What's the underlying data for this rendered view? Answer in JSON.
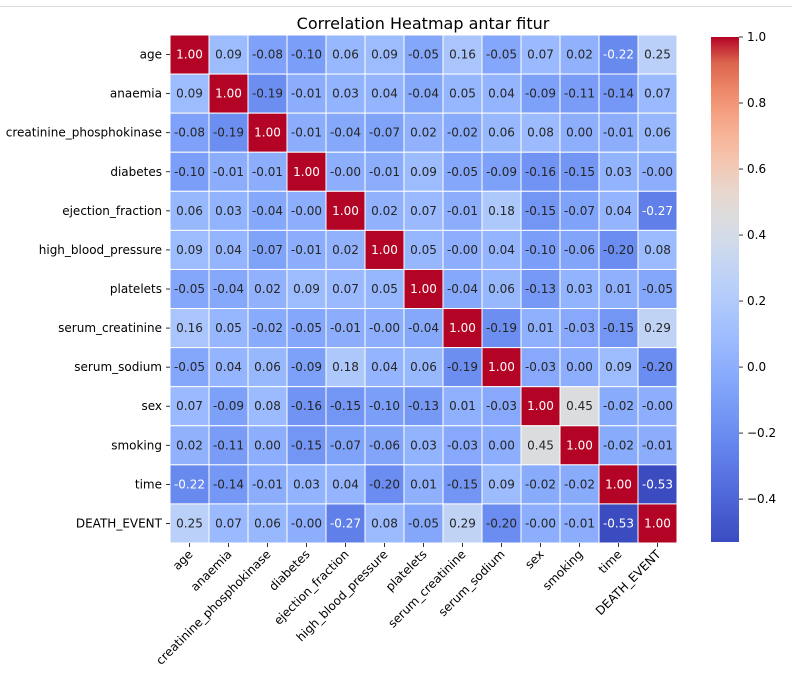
{
  "chart_data": {
    "type": "heatmap",
    "title": "Correlation Heatmap antar fitur",
    "xlabel": "",
    "ylabel": "",
    "labels": [
      "age",
      "anaemia",
      "creatinine_phosphokinase",
      "diabetes",
      "ejection_fraction",
      "high_blood_pressure",
      "platelets",
      "serum_creatinine",
      "serum_sodium",
      "sex",
      "smoking",
      "time",
      "DEATH_EVENT"
    ],
    "matrix": [
      [
        1.0,
        0.09,
        -0.08,
        -0.1,
        0.06,
        0.09,
        -0.05,
        0.16,
        -0.05,
        0.07,
        0.02,
        -0.22,
        0.25
      ],
      [
        0.09,
        1.0,
        -0.19,
        -0.01,
        0.03,
        0.04,
        -0.04,
        0.05,
        0.04,
        -0.09,
        -0.11,
        -0.14,
        0.07
      ],
      [
        -0.08,
        -0.19,
        1.0,
        -0.01,
        -0.04,
        -0.07,
        0.02,
        -0.02,
        0.06,
        0.08,
        0.0,
        -0.01,
        0.06
      ],
      [
        -0.1,
        -0.01,
        -0.01,
        1.0,
        -0.0,
        -0.01,
        0.09,
        -0.05,
        -0.09,
        -0.16,
        -0.15,
        0.03,
        -0.0
      ],
      [
        0.06,
        0.03,
        -0.04,
        -0.0,
        1.0,
        0.02,
        0.07,
        -0.01,
        0.18,
        -0.15,
        -0.07,
        0.04,
        -0.27
      ],
      [
        0.09,
        0.04,
        -0.07,
        -0.01,
        0.02,
        1.0,
        0.05,
        -0.0,
        0.04,
        -0.1,
        -0.06,
        -0.2,
        0.08
      ],
      [
        -0.05,
        -0.04,
        0.02,
        0.09,
        0.07,
        0.05,
        1.0,
        -0.04,
        0.06,
        -0.13,
        0.03,
        0.01,
        -0.05
      ],
      [
        0.16,
        0.05,
        -0.02,
        -0.05,
        -0.01,
        -0.0,
        -0.04,
        1.0,
        -0.19,
        0.01,
        -0.03,
        -0.15,
        0.29
      ],
      [
        -0.05,
        0.04,
        0.06,
        -0.09,
        0.18,
        0.04,
        0.06,
        -0.19,
        1.0,
        -0.03,
        0.0,
        0.09,
        -0.2
      ],
      [
        0.07,
        -0.09,
        0.08,
        -0.16,
        -0.15,
        -0.1,
        -0.13,
        0.01,
        -0.03,
        1.0,
        0.45,
        -0.02,
        -0.0
      ],
      [
        0.02,
        -0.11,
        0.0,
        -0.15,
        -0.07,
        -0.06,
        0.03,
        -0.03,
        0.0,
        0.45,
        1.0,
        -0.02,
        -0.01
      ],
      [
        -0.22,
        -0.14,
        -0.01,
        0.03,
        0.04,
        -0.2,
        0.01,
        -0.15,
        0.09,
        -0.02,
        -0.02,
        1.0,
        -0.53
      ],
      [
        0.25,
        0.07,
        0.06,
        -0.0,
        -0.27,
        0.08,
        -0.05,
        0.29,
        -0.2,
        -0.0,
        -0.01,
        -0.53,
        1.0
      ]
    ],
    "colormap": "coolwarm",
    "vmin": -0.53,
    "vmax": 1.0,
    "colorbar_ticks": [
      1.0,
      0.8,
      0.6,
      0.4,
      0.2,
      0.0,
      -0.2,
      -0.4
    ],
    "colorbar_tick_labels": [
      "1.0",
      "0.8",
      "0.6",
      "0.4",
      "0.2",
      "0.0",
      "−0.2",
      "−0.4"
    ],
    "annotated": true,
    "cell_borders": "white",
    "x_tick_rotation": 45
  }
}
